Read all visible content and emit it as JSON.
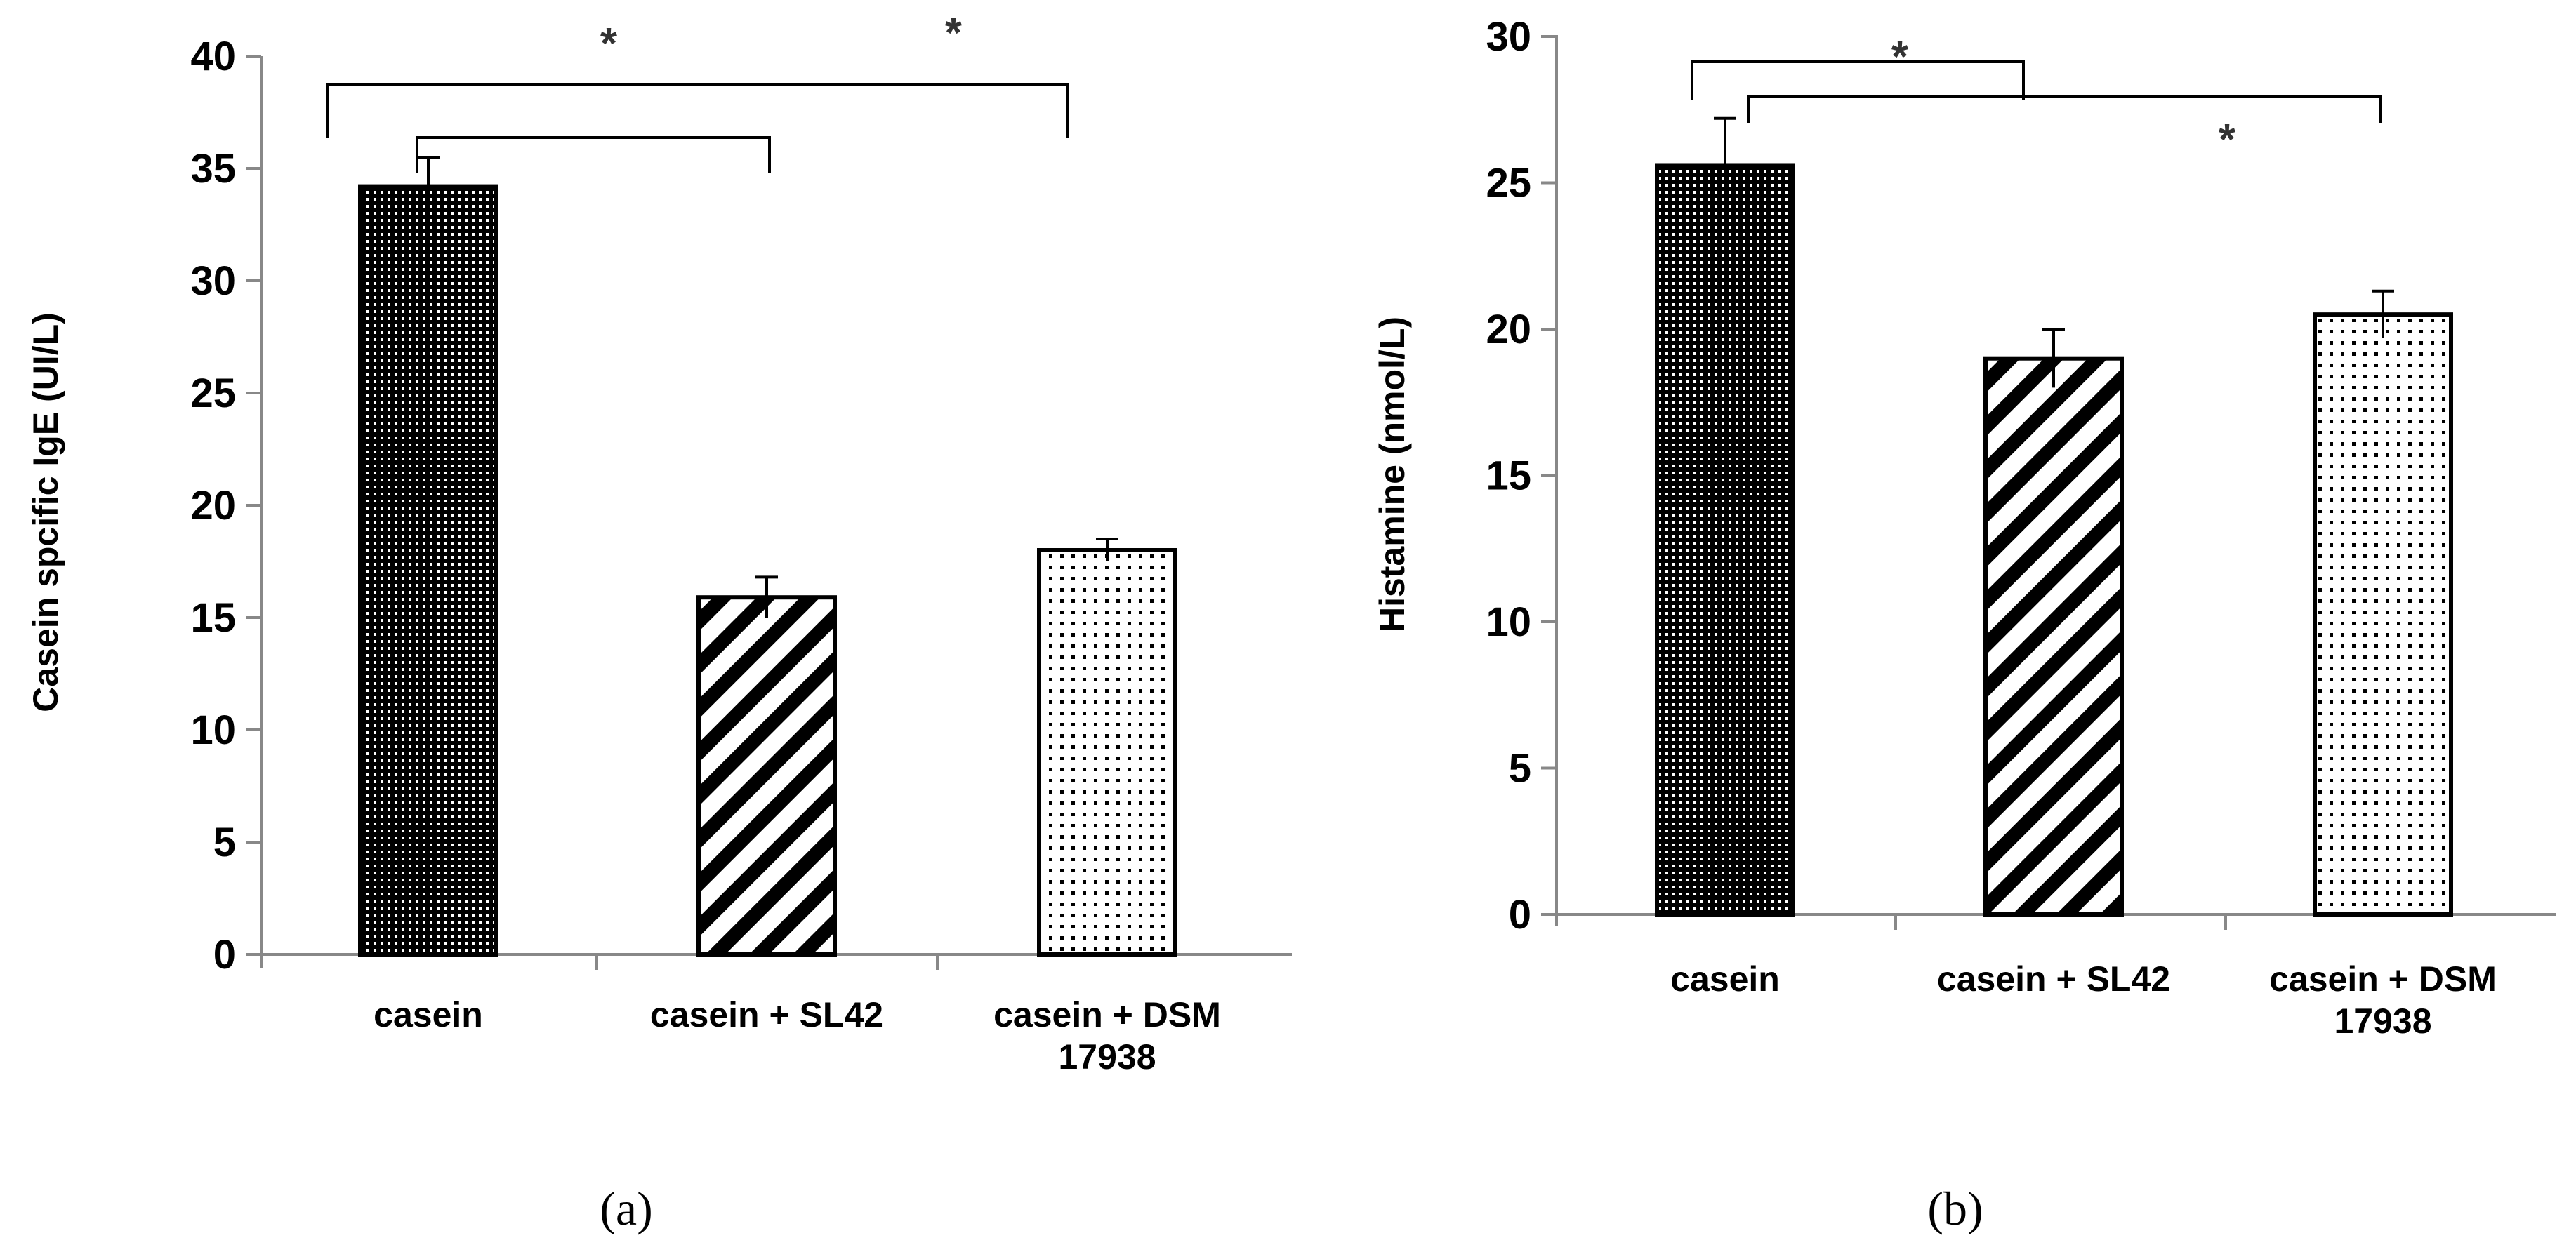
{
  "chart_data": [
    {
      "type": "bar",
      "panel_label": "(a)",
      "ylabel": "Casein spcific IgE (UI/L)",
      "ylim": [
        0,
        40
      ],
      "yticks": [
        0,
        5,
        10,
        15,
        20,
        25,
        30,
        35,
        40
      ],
      "categories": [
        [
          "casein"
        ],
        [
          "casein + SL42"
        ],
        [
          "casein +  DSM",
          "17938"
        ]
      ],
      "values": [
        34.2,
        15.9,
        18.0
      ],
      "errors": [
        1.3,
        0.9,
        0.5
      ],
      "patterns": [
        "dense-dots",
        "diagonal-stripes",
        "sparse-dots"
      ],
      "significance": [
        {
          "from": 0,
          "to": 1,
          "label": "*"
        },
        {
          "from": 0,
          "to": 2,
          "label": "*"
        }
      ]
    },
    {
      "type": "bar",
      "panel_label": "(b)",
      "ylabel": "Histamine (nmol/L)",
      "ylim": [
        0,
        30
      ],
      "yticks": [
        0,
        5,
        10,
        15,
        20,
        25,
        30
      ],
      "categories": [
        [
          "casein"
        ],
        [
          "casein + SL42"
        ],
        [
          "casein +  DSM",
          "17938"
        ]
      ],
      "values": [
        25.6,
        19.0,
        20.5
      ],
      "errors": [
        1.6,
        1.0,
        0.8
      ],
      "patterns": [
        "dense-dots",
        "diagonal-stripes",
        "sparse-dots"
      ],
      "significance": [
        {
          "from": 0,
          "to": 1,
          "label": "*"
        },
        {
          "from": 0,
          "to": 2,
          "label": "*"
        }
      ]
    }
  ],
  "colors": {
    "bar_stroke": "#000000",
    "axis": "#888888",
    "background": "#ffffff"
  }
}
